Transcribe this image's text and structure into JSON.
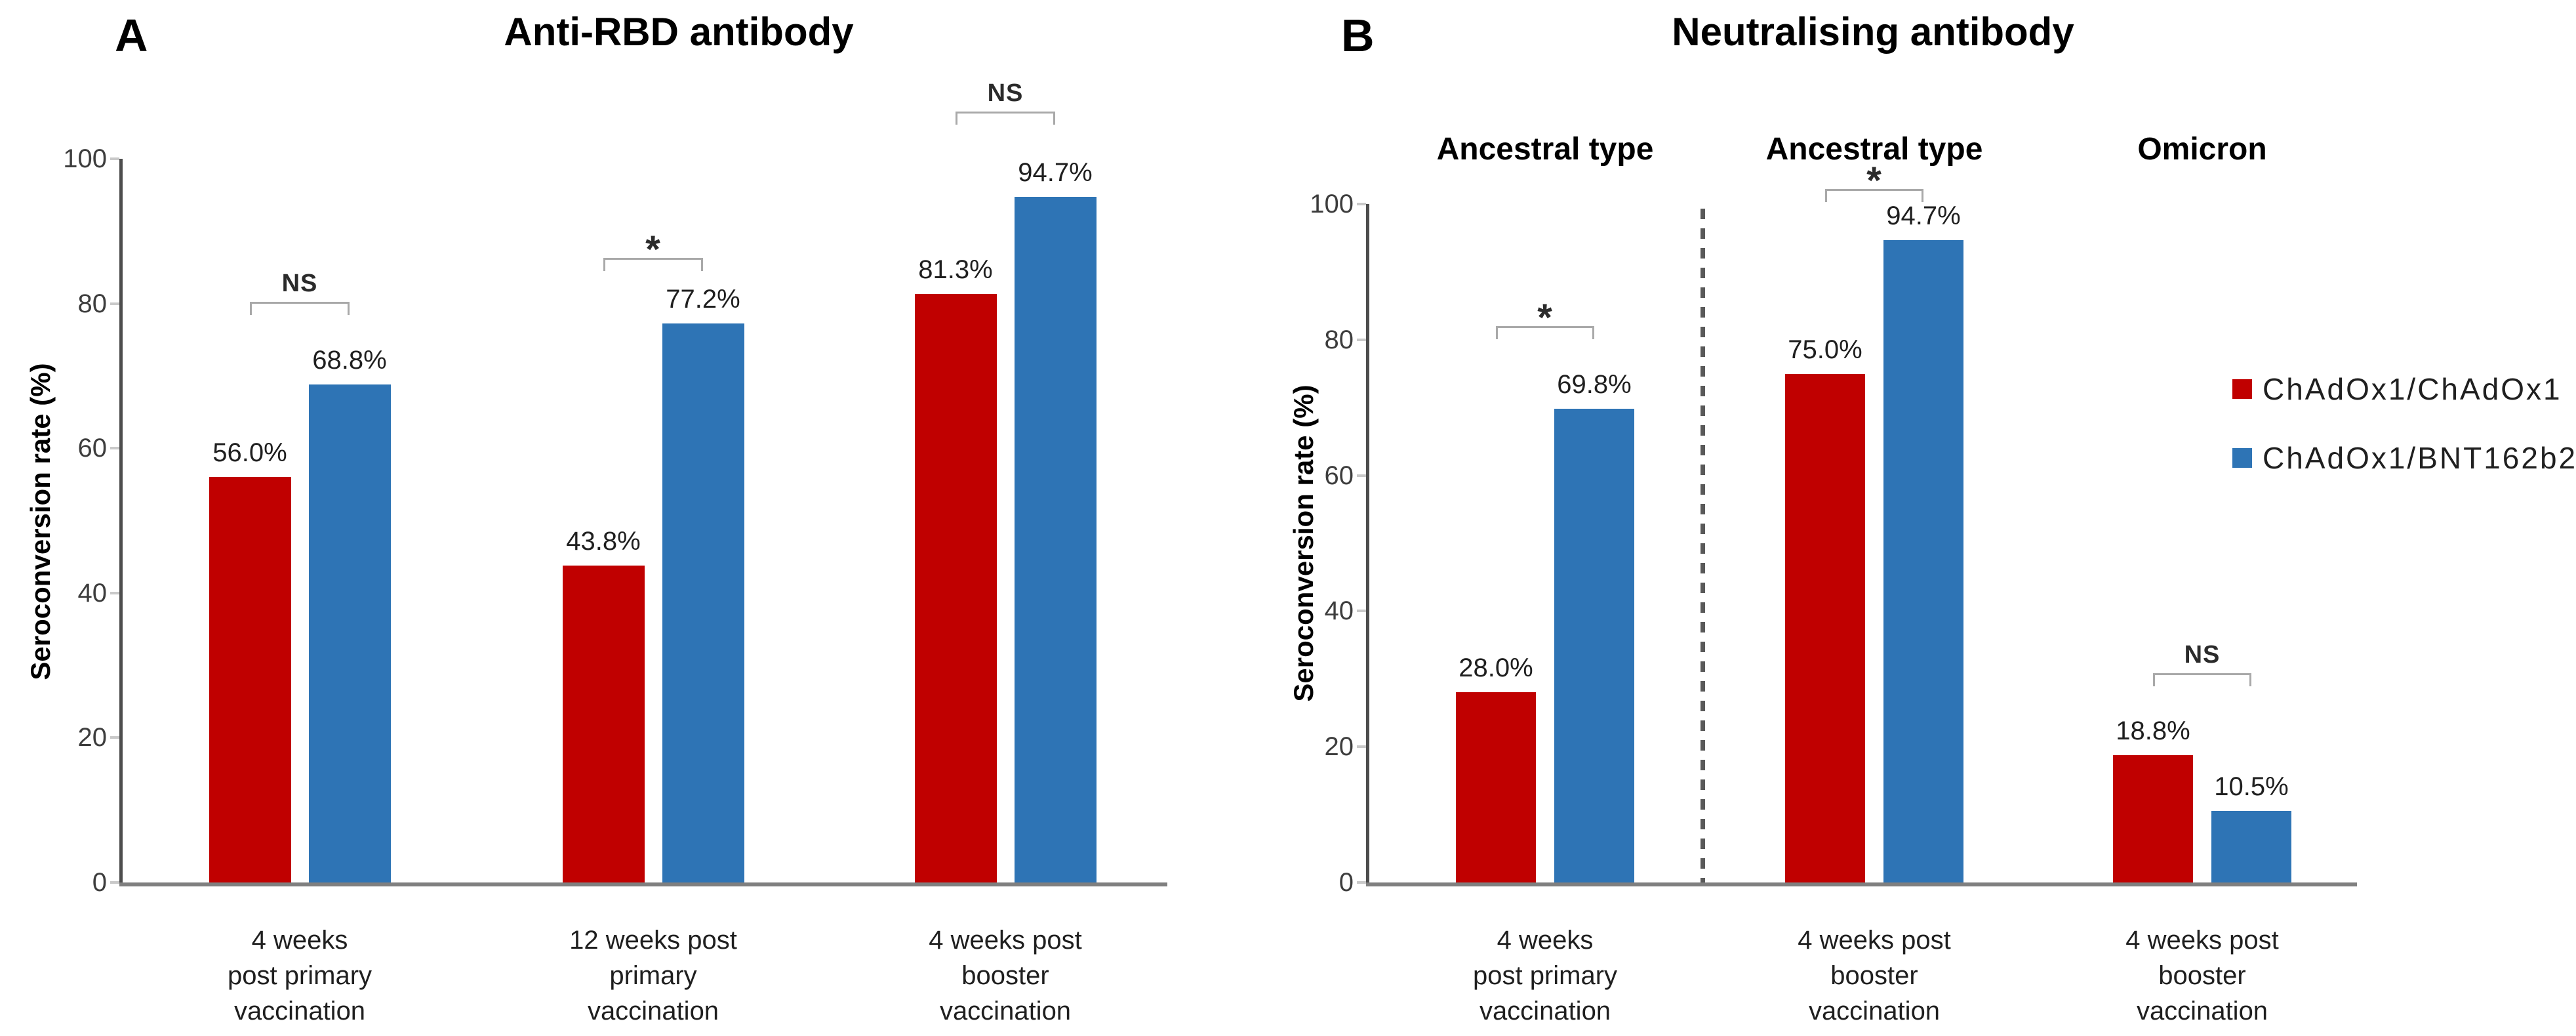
{
  "figure": {
    "legend": {
      "items": [
        {
          "label": "ChAdOx1/ChAdOx1",
          "color": "#C00000",
          "swatch_icon": "red-square-icon"
        },
        {
          "label": "ChAdOx1/BNT162b2",
          "color": "#2E74B5",
          "swatch_icon": "blue-square-icon"
        }
      ],
      "position": "right"
    },
    "colors": {
      "red_series": "#C00000",
      "blue_series": "#2E74B5",
      "y_axis": "#4d4d4d",
      "x_axis": "#7f7f7f",
      "bracket": "#a9a9a9",
      "dashed_separator": "#595959"
    }
  },
  "chart_data": [
    {
      "type": "bar",
      "panel_label": "A",
      "title": "Anti-RBD antibody",
      "ylabel": "Seroconversion rate (%)",
      "xlabel": "",
      "ylim": [
        0,
        100
      ],
      "yticks": [
        0,
        20,
        40,
        60,
        80,
        100
      ],
      "grid": false,
      "legend_position": "none",
      "categories": [
        [
          "4 weeks",
          "post primary",
          "vaccination"
        ],
        [
          "12 weeks post",
          "primary",
          "vaccination"
        ],
        [
          "4 weeks post",
          "booster",
          "vaccination"
        ]
      ],
      "series": [
        {
          "name": "ChAdOx1/ChAdOx1",
          "color": "#C00000",
          "values": [
            56.0,
            43.8,
            81.3
          ]
        },
        {
          "name": "ChAdOx1/BNT162b2",
          "color": "#2E74B5",
          "values": [
            68.8,
            77.2,
            94.7
          ]
        }
      ],
      "value_labels": [
        [
          "56.0%",
          "68.8%"
        ],
        [
          "43.8%",
          "77.2%"
        ],
        [
          "81.3%",
          "94.7%"
        ]
      ],
      "significance": [
        "NS",
        "*",
        "NS"
      ]
    },
    {
      "type": "bar",
      "panel_label": "B",
      "title": "Neutralising antibody",
      "ylabel": "Seroconversion rate (%)",
      "xlabel": "",
      "ylim": [
        0,
        100
      ],
      "yticks": [
        0,
        20,
        40,
        60,
        80,
        100
      ],
      "grid": false,
      "legend_position": "right",
      "subgroup_headers": [
        "Ancestral type",
        "Ancestral type",
        "Omicron"
      ],
      "separator_after_group": 0,
      "categories": [
        [
          "4 weeks",
          "post primary",
          "vaccination"
        ],
        [
          "4 weeks post",
          "booster",
          "vaccination"
        ],
        [
          "4 weeks post",
          "booster",
          "vaccination"
        ]
      ],
      "series": [
        {
          "name": "ChAdOx1/ChAdOx1",
          "color": "#C00000",
          "values": [
            28.0,
            75.0,
            18.8
          ]
        },
        {
          "name": "ChAdOx1/BNT162b2",
          "color": "#2E74B5",
          "values": [
            69.8,
            94.7,
            10.5
          ]
        }
      ],
      "value_labels": [
        [
          "28.0%",
          "69.8%"
        ],
        [
          "75.0%",
          "94.7%"
        ],
        [
          "18.8%",
          "10.5%"
        ]
      ],
      "significance": [
        "*",
        "*",
        "NS"
      ]
    }
  ]
}
